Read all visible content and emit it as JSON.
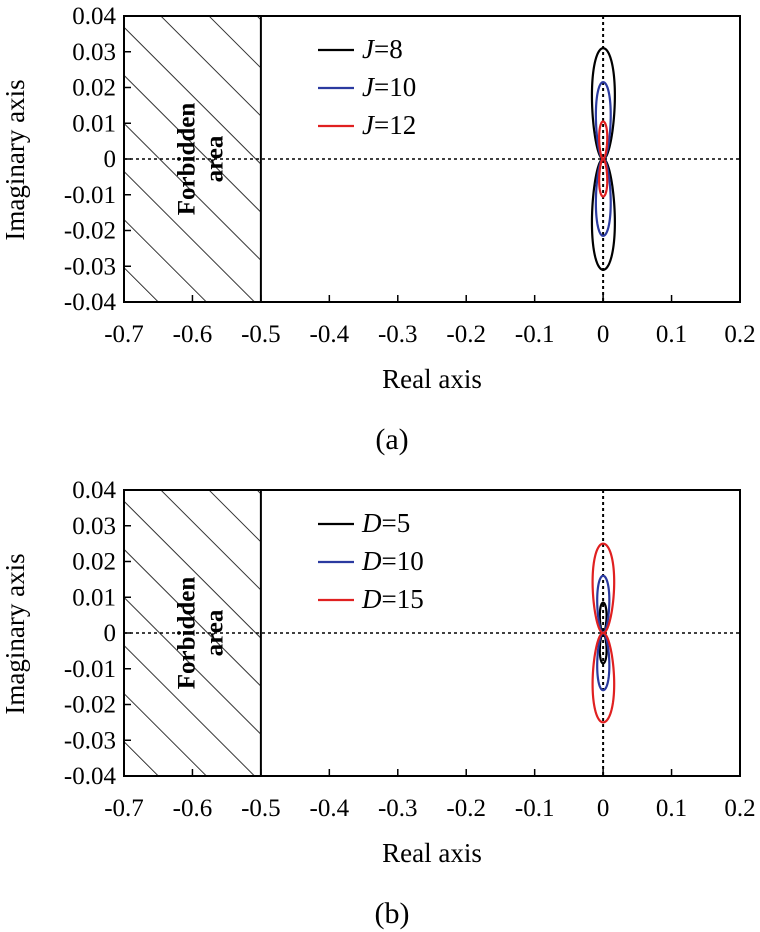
{
  "chart_data": [
    {
      "type": "line",
      "panel_label": "(a)",
      "xlabel": "Real axis",
      "ylabel": "Imaginary axis",
      "xlim": [
        -0.7,
        0.2
      ],
      "ylim": [
        -0.04,
        0.04
      ],
      "x_ticks": [
        "-0.7",
        "-0.6",
        "-0.5",
        "-0.4",
        "-0.3",
        "-0.2",
        "-0.1",
        "0",
        "0.1",
        "0.2"
      ],
      "y_ticks": [
        "0.04",
        "0.03",
        "0.02",
        "0.01",
        "0",
        "-0.01",
        "-0.02",
        "-0.03",
        "-0.04"
      ],
      "forbidden_region": {
        "x_from": -0.7,
        "x_to": -0.5,
        "label_line1": "Forbidden",
        "label_line2": "area"
      },
      "legend_position": "top-center",
      "series": [
        {
          "name_var": "J",
          "name_val": "=8",
          "color": "#000000",
          "half_width": 0.017,
          "y_extent": 0.031
        },
        {
          "name_var": "J",
          "name_val": "=10",
          "color": "#2b3aa0",
          "half_width": 0.011,
          "y_extent": 0.0215
        },
        {
          "name_var": "J",
          "name_val": "=12",
          "color": "#e02020",
          "half_width": 0.006,
          "y_extent": 0.0105
        }
      ]
    },
    {
      "type": "line",
      "panel_label": "(b)",
      "xlabel": "Real axis",
      "ylabel": "Imaginary axis",
      "xlim": [
        -0.7,
        0.2
      ],
      "ylim": [
        -0.04,
        0.04
      ],
      "x_ticks": [
        "-0.7",
        "-0.6",
        "-0.5",
        "-0.4",
        "-0.3",
        "-0.2",
        "-0.1",
        "0",
        "0.1",
        "0.2"
      ],
      "y_ticks": [
        "0.04",
        "0.03",
        "0.02",
        "0.01",
        "0",
        "-0.01",
        "-0.02",
        "-0.03",
        "-0.04"
      ],
      "forbidden_region": {
        "x_from": -0.7,
        "x_to": -0.5,
        "label_line1": "Forbidden",
        "label_line2": "area"
      },
      "legend_position": "top-center",
      "series": [
        {
          "name_var": "D",
          "name_val": "=5",
          "color": "#000000",
          "half_width": 0.005,
          "y_extent": 0.0085
        },
        {
          "name_var": "D",
          "name_val": "=10",
          "color": "#2b3aa0",
          "half_width": 0.009,
          "y_extent": 0.016
        },
        {
          "name_var": "D",
          "name_val": "=15",
          "color": "#e02020",
          "half_width": 0.016,
          "y_extent": 0.025
        }
      ]
    }
  ]
}
